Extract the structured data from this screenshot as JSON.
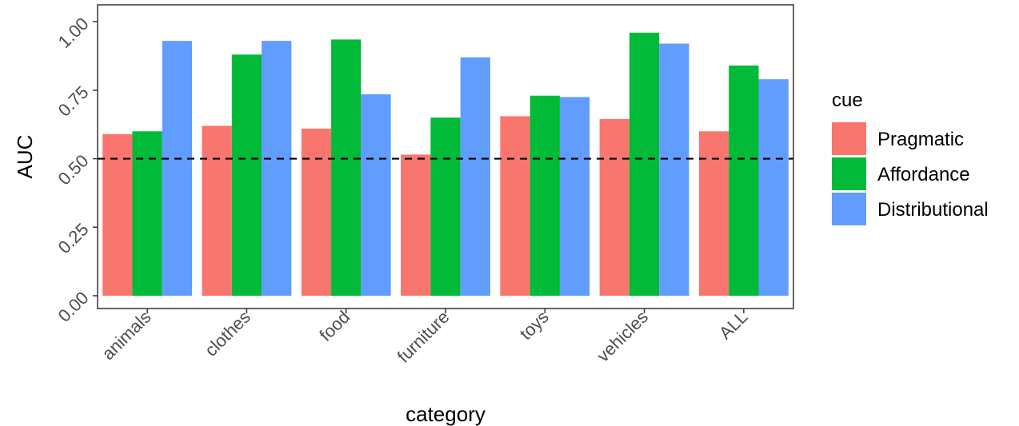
{
  "chart_data": {
    "type": "bar",
    "xlabel": "category",
    "ylabel": "AUC",
    "ylim": [
      0,
      1.05
    ],
    "yticks": [
      0.0,
      0.25,
      0.5,
      0.75,
      1.0
    ],
    "ytick_labels": [
      "0.00",
      "0.25",
      "0.50",
      "0.75",
      "1.00"
    ],
    "categories": [
      "animals",
      "clothes",
      "food",
      "furniture",
      "toys",
      "vehicles",
      "ALL"
    ],
    "series": [
      {
        "name": "Pragmatic",
        "color": "#F8766D",
        "values": [
          0.59,
          0.62,
          0.61,
          0.515,
          0.655,
          0.645,
          0.6
        ]
      },
      {
        "name": "Affordance",
        "color": "#00BA38",
        "values": [
          0.6,
          0.88,
          0.935,
          0.65,
          0.73,
          0.96,
          0.84
        ]
      },
      {
        "name": "Distributional",
        "color": "#619CFF",
        "values": [
          0.93,
          0.93,
          0.735,
          0.87,
          0.725,
          0.92,
          0.79
        ]
      }
    ],
    "reference_line": {
      "y": 0.5,
      "style": "dashed"
    },
    "legend": {
      "title": "cue",
      "placement": "right"
    },
    "grid": false
  }
}
